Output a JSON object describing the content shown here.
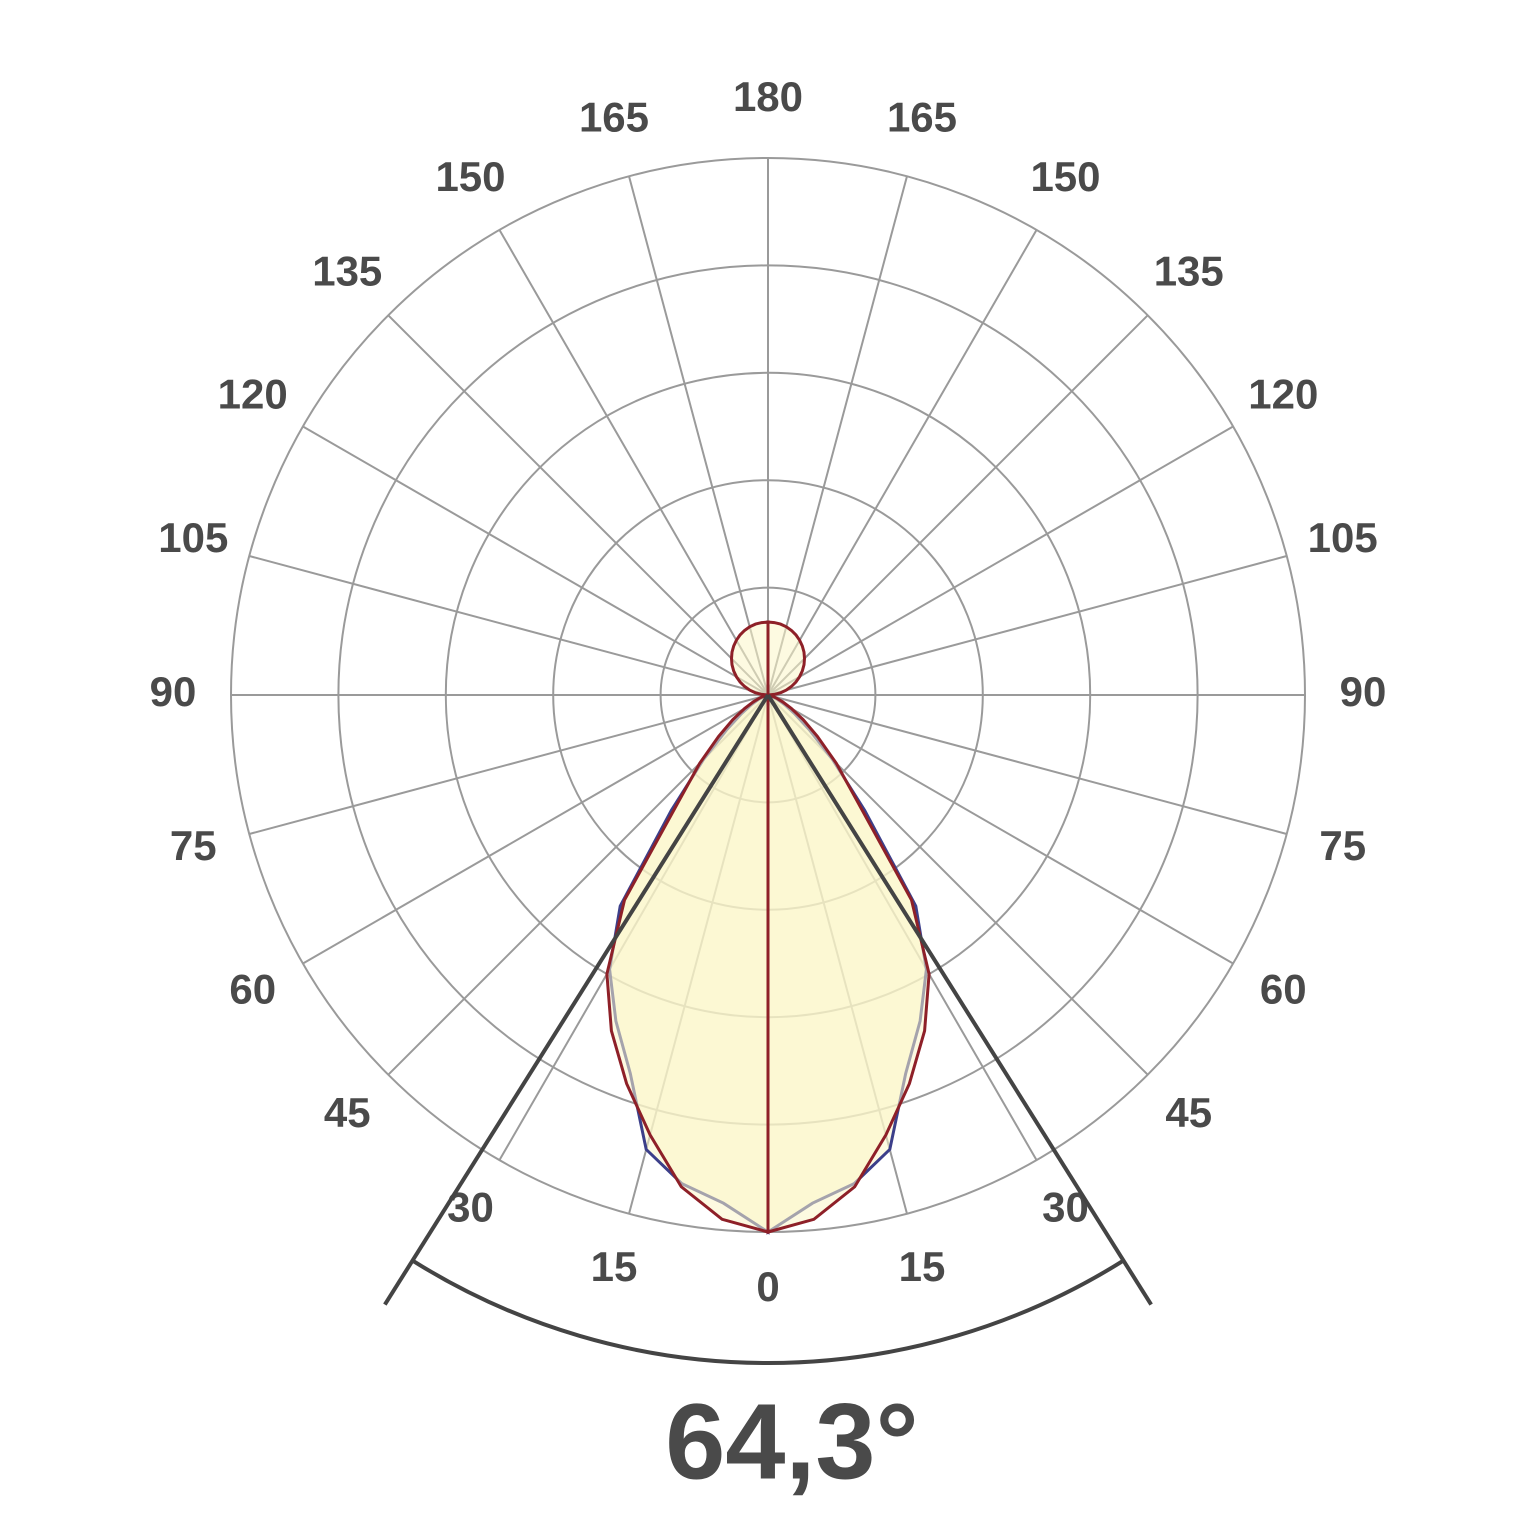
{
  "chart_data": {
    "type": "polar",
    "x": [
      0,
      5,
      10,
      15,
      20,
      25,
      30,
      35,
      40,
      45,
      50,
      55,
      60,
      65,
      70,
      75,
      80,
      85,
      90,
      95,
      100,
      105,
      110,
      115,
      120,
      125,
      130,
      135,
      140,
      145,
      150,
      155,
      160,
      165,
      170,
      175,
      180
    ],
    "series": [
      {
        "color": "#3c3f8a",
        "values": [
          5.0,
          4.75,
          4.62,
          4.38,
          3.75,
          3.35,
          2.95,
          2.4,
          1.4,
          0.85,
          0.5,
          0.3,
          0.18,
          0.1,
          0.05,
          0.02,
          0,
          0,
          0,
          0,
          0,
          0,
          0,
          0,
          0,
          0,
          0,
          0,
          0,
          0,
          0,
          0,
          0,
          0,
          0,
          0,
          0
        ]
      },
      {
        "color": "#8e2028",
        "values": [
          5.0,
          4.9,
          4.65,
          4.24,
          3.85,
          3.45,
          3.0,
          2.33,
          1.3,
          0.9,
          0.6,
          0.4,
          0.25,
          0.15,
          0.08,
          0.04,
          0.02,
          0.01,
          0,
          0.059,
          0.118,
          0.176,
          0.233,
          0.287,
          0.34,
          0.39,
          0.437,
          0.481,
          0.521,
          0.557,
          0.589,
          0.616,
          0.639,
          0.657,
          0.67,
          0.677,
          0.68
        ]
      }
    ],
    "rlim": [
      0,
      5
    ],
    "rticks": [
      1,
      2,
      3,
      4,
      5
    ],
    "angle_ticks": [
      0,
      15,
      30,
      45,
      60,
      75,
      90,
      105,
      120,
      135,
      150,
      165,
      180
    ],
    "fill": "#fbf6c8",
    "beam_angle": {
      "value": 64.3,
      "label": "64,3°"
    }
  }
}
